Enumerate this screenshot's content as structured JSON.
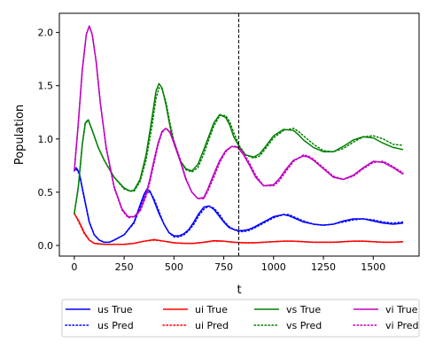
{
  "chart_data": {
    "type": "line",
    "xlabel": "t",
    "ylabel": "Population",
    "xlim": [
      -75,
      1730
    ],
    "ylim": [
      -0.1,
      2.18
    ],
    "x_ticks": [
      0,
      250,
      500,
      750,
      1000,
      1250,
      1500
    ],
    "y_ticks": [
      0.0,
      0.5,
      1.0,
      1.5,
      2.0
    ],
    "x_tick_labels": [
      "0",
      "250",
      "500",
      "750",
      "1000",
      "1250",
      "1500"
    ],
    "y_tick_labels": [
      "0.0",
      "0.5",
      "1.0",
      "1.5",
      "2.0"
    ],
    "vline": {
      "x": 825,
      "style": "dashed",
      "color": "#000000"
    },
    "grid": false,
    "legend_position": "below the plot, 4 columns",
    "series": [
      {
        "name": "us True",
        "color": "#0000ff",
        "dash": "solid",
        "x": [
          0,
          10,
          25,
          50,
          75,
          100,
          125,
          150,
          175,
          200,
          250,
          300,
          330,
          350,
          365,
          380,
          400,
          425,
          450,
          475,
          500,
          525,
          550,
          575,
          600,
          625,
          650,
          675,
          700,
          725,
          750,
          775,
          800,
          825,
          850,
          875,
          900,
          950,
          1000,
          1050,
          1075,
          1100,
          1150,
          1200,
          1250,
          1300,
          1350,
          1400,
          1450,
          1500,
          1550,
          1600,
          1650
        ],
        "y": [
          0.7,
          0.73,
          0.68,
          0.45,
          0.22,
          0.1,
          0.05,
          0.03,
          0.03,
          0.05,
          0.1,
          0.22,
          0.38,
          0.48,
          0.53,
          0.51,
          0.42,
          0.3,
          0.2,
          0.12,
          0.09,
          0.09,
          0.11,
          0.15,
          0.22,
          0.3,
          0.36,
          0.37,
          0.34,
          0.28,
          0.22,
          0.17,
          0.15,
          0.14,
          0.14,
          0.15,
          0.17,
          0.22,
          0.27,
          0.29,
          0.28,
          0.26,
          0.22,
          0.2,
          0.19,
          0.2,
          0.23,
          0.25,
          0.25,
          0.23,
          0.21,
          0.2,
          0.21
        ]
      },
      {
        "name": "us Pred",
        "color": "#0000ff",
        "dash": "dotted",
        "x": [
          0,
          10,
          25,
          50,
          75,
          100,
          125,
          150,
          175,
          200,
          250,
          300,
          330,
          350,
          365,
          380,
          400,
          425,
          450,
          475,
          500,
          525,
          550,
          575,
          600,
          625,
          650,
          675,
          700,
          725,
          750,
          775,
          800,
          825,
          850,
          875,
          900,
          950,
          1000,
          1050,
          1075,
          1100,
          1150,
          1200,
          1250,
          1300,
          1350,
          1400,
          1450,
          1500,
          1550,
          1600,
          1650
        ],
        "y": [
          0.7,
          0.72,
          0.67,
          0.44,
          0.22,
          0.1,
          0.05,
          0.03,
          0.03,
          0.05,
          0.1,
          0.21,
          0.36,
          0.46,
          0.5,
          0.5,
          0.44,
          0.32,
          0.2,
          0.12,
          0.08,
          0.08,
          0.1,
          0.14,
          0.2,
          0.28,
          0.34,
          0.37,
          0.35,
          0.3,
          0.23,
          0.18,
          0.15,
          0.13,
          0.13,
          0.14,
          0.16,
          0.21,
          0.26,
          0.29,
          0.29,
          0.27,
          0.23,
          0.2,
          0.19,
          0.2,
          0.22,
          0.24,
          0.25,
          0.24,
          0.22,
          0.21,
          0.22
        ]
      },
      {
        "name": "ui True",
        "color": "#ff0000",
        "dash": "solid",
        "x": [
          0,
          25,
          50,
          75,
          100,
          150,
          200,
          250,
          300,
          350,
          400,
          450,
          500,
          550,
          600,
          650,
          700,
          750,
          800,
          850,
          900,
          950,
          1000,
          1050,
          1100,
          1150,
          1200,
          1250,
          1300,
          1350,
          1400,
          1450,
          1500,
          1550,
          1600,
          1650
        ],
        "y": [
          0.3,
          0.22,
          0.12,
          0.05,
          0.02,
          0.01,
          0.01,
          0.01,
          0.02,
          0.04,
          0.055,
          0.04,
          0.025,
          0.02,
          0.02,
          0.03,
          0.045,
          0.04,
          0.03,
          0.025,
          0.025,
          0.03,
          0.035,
          0.04,
          0.04,
          0.035,
          0.03,
          0.03,
          0.03,
          0.035,
          0.04,
          0.04,
          0.035,
          0.03,
          0.03,
          0.035
        ]
      },
      {
        "name": "ui Pred",
        "color": "#ff0000",
        "dash": "dotted",
        "x": [
          0,
          25,
          50,
          75,
          100,
          150,
          200,
          250,
          300,
          350,
          400,
          450,
          500,
          550,
          600,
          650,
          700,
          750,
          800,
          850,
          900,
          950,
          1000,
          1050,
          1100,
          1150,
          1200,
          1250,
          1300,
          1350,
          1400,
          1450,
          1500,
          1550,
          1600,
          1650
        ],
        "y": [
          0.3,
          0.21,
          0.11,
          0.05,
          0.02,
          0.01,
          0.01,
          0.01,
          0.02,
          0.04,
          0.05,
          0.04,
          0.025,
          0.02,
          0.02,
          0.03,
          0.04,
          0.04,
          0.03,
          0.025,
          0.025,
          0.03,
          0.035,
          0.04,
          0.04,
          0.035,
          0.03,
          0.03,
          0.03,
          0.035,
          0.04,
          0.04,
          0.035,
          0.03,
          0.03,
          0.035
        ]
      },
      {
        "name": "vs True",
        "color": "#008000",
        "dash": "solid",
        "x": [
          0,
          20,
          40,
          55,
          70,
          90,
          120,
          150,
          200,
          250,
          280,
          300,
          330,
          360,
          390,
          410,
          425,
          440,
          460,
          480,
          500,
          530,
          560,
          590,
          620,
          650,
          680,
          700,
          730,
          760,
          780,
          800,
          830,
          860,
          900,
          930,
          960,
          1000,
          1050,
          1100,
          1125,
          1150,
          1200,
          1250,
          1300,
          1350,
          1400,
          1450,
          1500,
          1550,
          1600,
          1650
        ],
        "y": [
          0.3,
          0.55,
          0.95,
          1.15,
          1.18,
          1.08,
          0.92,
          0.8,
          0.64,
          0.54,
          0.51,
          0.52,
          0.62,
          0.85,
          1.2,
          1.45,
          1.52,
          1.48,
          1.32,
          1.12,
          0.96,
          0.8,
          0.72,
          0.7,
          0.76,
          0.9,
          1.05,
          1.15,
          1.23,
          1.2,
          1.13,
          1.02,
          0.92,
          0.85,
          0.83,
          0.86,
          0.93,
          1.03,
          1.09,
          1.08,
          1.04,
          0.99,
          0.92,
          0.88,
          0.88,
          0.93,
          0.99,
          1.02,
          1.01,
          0.96,
          0.92,
          0.9
        ]
      },
      {
        "name": "vs Pred",
        "color": "#008000",
        "dash": "dotted",
        "x": [
          0,
          20,
          40,
          55,
          70,
          90,
          120,
          150,
          200,
          250,
          280,
          300,
          330,
          360,
          390,
          410,
          425,
          440,
          460,
          480,
          500,
          530,
          560,
          590,
          620,
          650,
          680,
          700,
          730,
          760,
          780,
          800,
          830,
          860,
          900,
          930,
          960,
          1000,
          1050,
          1100,
          1125,
          1150,
          1200,
          1250,
          1300,
          1350,
          1400,
          1450,
          1500,
          1550,
          1600,
          1650
        ],
        "y": [
          0.3,
          0.54,
          0.94,
          1.14,
          1.18,
          1.08,
          0.92,
          0.8,
          0.64,
          0.53,
          0.51,
          0.51,
          0.6,
          0.8,
          1.12,
          1.38,
          1.48,
          1.47,
          1.35,
          1.15,
          0.98,
          0.8,
          0.71,
          0.69,
          0.73,
          0.86,
          1.02,
          1.12,
          1.22,
          1.22,
          1.16,
          1.06,
          0.93,
          0.85,
          0.82,
          0.84,
          0.91,
          1.01,
          1.08,
          1.1,
          1.07,
          1.03,
          0.95,
          0.89,
          0.88,
          0.91,
          0.97,
          1.02,
          1.03,
          1.0,
          0.95,
          0.94
        ]
      },
      {
        "name": "vi True",
        "color": "#bf00bf",
        "dash": "solid",
        "x": [
          0,
          20,
          40,
          60,
          75,
          90,
          110,
          130,
          160,
          200,
          240,
          270,
          300,
          330,
          360,
          380,
          400,
          420,
          440,
          460,
          480,
          500,
          530,
          560,
          590,
          620,
          650,
          670,
          700,
          730,
          760,
          790,
          820,
          850,
          880,
          910,
          950,
          1000,
          1030,
          1060,
          1100,
          1150,
          1175,
          1200,
          1250,
          1300,
          1350,
          1400,
          1450,
          1500,
          1550,
          1600,
          1650
        ],
        "y": [
          0.7,
          1.15,
          1.65,
          1.98,
          2.06,
          1.98,
          1.72,
          1.35,
          0.92,
          0.55,
          0.34,
          0.27,
          0.27,
          0.33,
          0.48,
          0.63,
          0.8,
          0.96,
          1.07,
          1.1,
          1.06,
          0.96,
          0.8,
          0.62,
          0.5,
          0.44,
          0.45,
          0.53,
          0.67,
          0.8,
          0.89,
          0.93,
          0.92,
          0.85,
          0.75,
          0.64,
          0.56,
          0.57,
          0.63,
          0.71,
          0.8,
          0.84,
          0.83,
          0.8,
          0.72,
          0.64,
          0.62,
          0.66,
          0.73,
          0.79,
          0.78,
          0.73,
          0.67
        ]
      },
      {
        "name": "vi Pred",
        "color": "#bf00bf",
        "dash": "dotted",
        "x": [
          0,
          20,
          40,
          60,
          75,
          90,
          110,
          130,
          160,
          200,
          240,
          270,
          300,
          330,
          360,
          380,
          400,
          420,
          440,
          460,
          480,
          500,
          530,
          560,
          590,
          620,
          650,
          670,
          700,
          730,
          760,
          790,
          820,
          850,
          880,
          910,
          950,
          1000,
          1030,
          1060,
          1100,
          1150,
          1175,
          1200,
          1250,
          1300,
          1350,
          1400,
          1450,
          1500,
          1550,
          1600,
          1650
        ],
        "y": [
          0.7,
          1.14,
          1.64,
          1.98,
          2.06,
          1.98,
          1.72,
          1.34,
          0.91,
          0.54,
          0.33,
          0.26,
          0.27,
          0.32,
          0.46,
          0.6,
          0.77,
          0.94,
          1.06,
          1.1,
          1.07,
          0.98,
          0.82,
          0.63,
          0.5,
          0.44,
          0.44,
          0.51,
          0.64,
          0.78,
          0.88,
          0.93,
          0.93,
          0.87,
          0.77,
          0.66,
          0.56,
          0.56,
          0.61,
          0.69,
          0.79,
          0.85,
          0.84,
          0.81,
          0.73,
          0.65,
          0.62,
          0.65,
          0.72,
          0.78,
          0.79,
          0.74,
          0.68
        ]
      }
    ]
  }
}
